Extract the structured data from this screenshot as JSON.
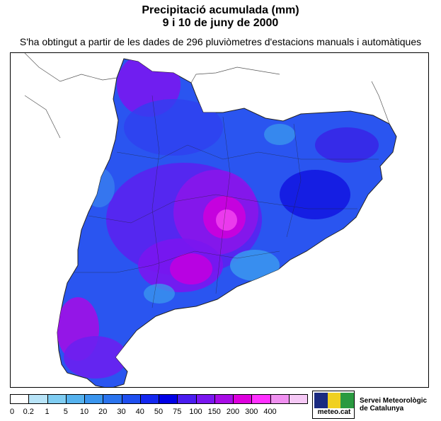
{
  "header": {
    "title_line1": "Precipitació acumulada (mm)",
    "title_line2": "9 i 10 de juny de 2000",
    "subtitle": "S'ha obtingut a partir de les dades de 296 pluviòmetres d'estacions manuals i automàtiques"
  },
  "legend": {
    "unit": "mm",
    "thresholds": [
      "0",
      "0.2",
      "1",
      "5",
      "10",
      "20",
      "30",
      "40",
      "50",
      "75",
      "100",
      "150",
      "200",
      "300",
      "400"
    ],
    "colors": [
      "#ffffff",
      "#b8e4f8",
      "#7fcdf2",
      "#55b2ee",
      "#3a95ee",
      "#2b74ee",
      "#1f4ff0",
      "#1428f0",
      "#0000e6",
      "#4a1cf0",
      "#7a16f0",
      "#a80ce6",
      "#dd00dd",
      "#ff30ff",
      "#f090f0",
      "#f5c8f5"
    ]
  },
  "map": {
    "region": "Catalunya",
    "dominant_colors": [
      "#2b5af0",
      "#4a2cf0",
      "#8a18e8",
      "#dd00dd",
      "#3a95ee"
    ]
  },
  "branding": {
    "logo_text": "meteo.cat",
    "org_line1": "Servei Meteorològic",
    "org_line2": "de Catalunya"
  }
}
